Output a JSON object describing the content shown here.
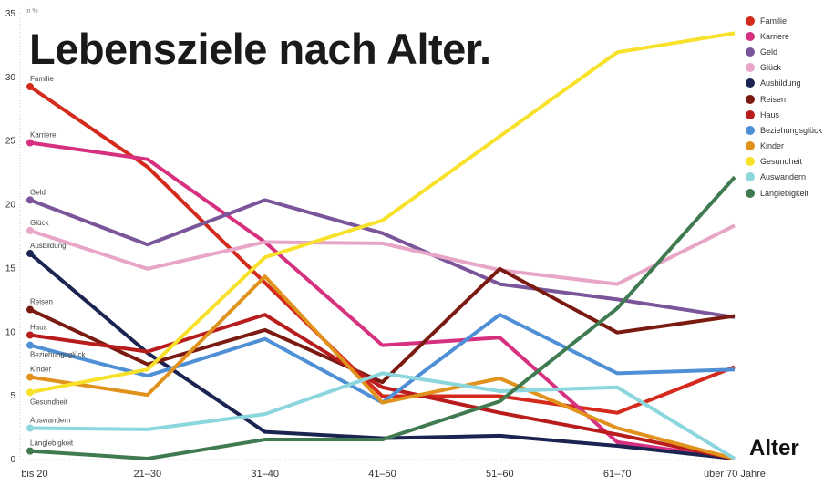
{
  "title": "Lebensziele nach Alter.",
  "unit_label": "in %",
  "x_axis_title": "Alter",
  "chart_data": {
    "type": "line",
    "title": "Lebensziele nach Alter.",
    "xlabel": "Alter",
    "ylabel": "in %",
    "ylim": [
      0,
      35
    ],
    "yticks": [
      0,
      5,
      10,
      15,
      20,
      25,
      30,
      35
    ],
    "grid": false,
    "legend": "top-right",
    "categories": [
      "bis 20",
      "21–30",
      "31–40",
      "41–50",
      "51–60",
      "61–70",
      "über 70 Jahre"
    ],
    "series": [
      {
        "name": "Familie",
        "color": "#d42a1c",
        "values": [
          29.2,
          22.9,
          13.8,
          4.9,
          4.9,
          3.6,
          7.2
        ]
      },
      {
        "name": "Karriere",
        "color": "#d6307f",
        "values": [
          24.8,
          23.5,
          17.0,
          8.9,
          9.5,
          1.3,
          0
        ]
      },
      {
        "name": "Geld",
        "color": "#7a559a",
        "values": [
          20.3,
          16.8,
          20.3,
          17.7,
          13.7,
          12.5,
          11.1
        ]
      },
      {
        "name": "Glück",
        "color": "#e7a6c7",
        "values": [
          17.9,
          14.9,
          17.0,
          16.9,
          14.8,
          13.7,
          18.3
        ]
      },
      {
        "name": "Ausbildung",
        "color": "#1b2350",
        "values": [
          16.1,
          8.3,
          2.1,
          1.6,
          1.8,
          1.0,
          0
        ]
      },
      {
        "name": "Reisen",
        "color": "#7a1a10",
        "values": [
          11.7,
          7.4,
          10.1,
          6.0,
          14.9,
          9.9,
          11.2
        ]
      },
      {
        "name": "Haus",
        "color": "#b81c1c",
        "values": [
          9.7,
          8.4,
          11.3,
          5.6,
          3.6,
          1.9,
          0
        ]
      },
      {
        "name": "Beziehungsglück",
        "color": "#4f8fd6",
        "values": [
          8.9,
          6.5,
          9.4,
          4.4,
          11.3,
          6.7,
          7.0
        ]
      },
      {
        "name": "Kinder",
        "color": "#e0921c",
        "values": [
          6.4,
          5.0,
          14.3,
          4.4,
          6.3,
          2.4,
          0
        ]
      },
      {
        "name": "Gesundheit",
        "color": "#f8e12a",
        "values": [
          5.2,
          7.0,
          15.8,
          18.7,
          25.3,
          31.9,
          33.4
        ]
      },
      {
        "name": "Auswandern",
        "color": "#8cd6de",
        "values": [
          2.4,
          2.3,
          3.5,
          6.7,
          5.3,
          5.6,
          0
        ]
      },
      {
        "name": "Langlebigkeit",
        "color": "#3f7a50",
        "values": [
          0.6,
          0.0,
          1.5,
          1.5,
          4.5,
          11.8,
          22.1
        ]
      }
    ]
  }
}
